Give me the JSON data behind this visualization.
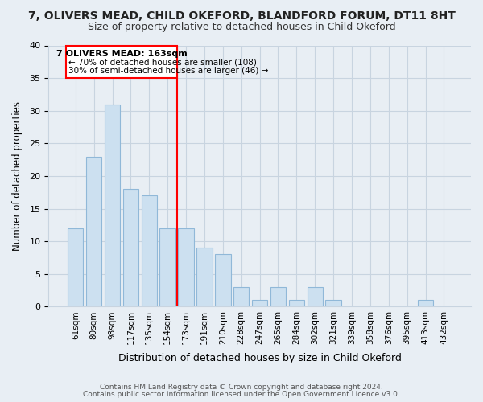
{
  "title1": "7, OLIVERS MEAD, CHILD OKEFORD, BLANDFORD FORUM, DT11 8HT",
  "title2": "Size of property relative to detached houses in Child Okeford",
  "xlabel": "Distribution of detached houses by size in Child Okeford",
  "ylabel": "Number of detached properties",
  "bin_labels": [
    "61sqm",
    "80sqm",
    "98sqm",
    "117sqm",
    "135sqm",
    "154sqm",
    "173sqm",
    "191sqm",
    "210sqm",
    "228sqm",
    "247sqm",
    "265sqm",
    "284sqm",
    "302sqm",
    "321sqm",
    "339sqm",
    "358sqm",
    "376sqm",
    "395sqm",
    "413sqm",
    "432sqm"
  ],
  "bar_heights": [
    12,
    23,
    31,
    18,
    17,
    12,
    12,
    9,
    8,
    3,
    1,
    3,
    1,
    3,
    1,
    0,
    0,
    0,
    0,
    1,
    0
  ],
  "bar_color": "#cce0f0",
  "bar_edge_color": "#90b8d8",
  "ylim": [
    0,
    40
  ],
  "yticks": [
    0,
    5,
    10,
    15,
    20,
    25,
    30,
    35,
    40
  ],
  "property_line_x": 5.5,
  "annotation_title": "7 OLIVERS MEAD: 163sqm",
  "annotation_line1": "← 70% of detached houses are smaller (108)",
  "annotation_line2": "30% of semi-detached houses are larger (46) →",
  "footer1": "Contains HM Land Registry data © Crown copyright and database right 2024.",
  "footer2": "Contains public sector information licensed under the Open Government Licence v3.0.",
  "bg_color": "#e8eef4",
  "plot_bg_color": "#e8eef4",
  "grid_color": "#c8d4e0",
  "title1_fontsize": 10,
  "title2_fontsize": 9
}
